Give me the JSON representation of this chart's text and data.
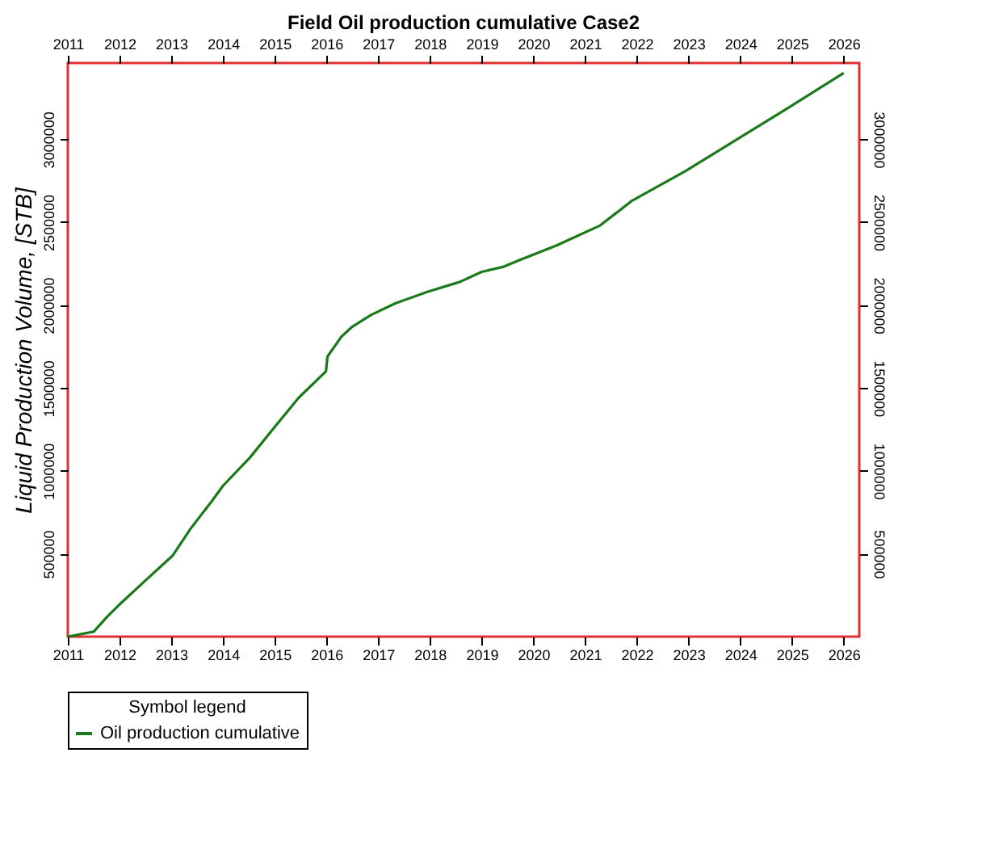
{
  "chart_data": {
    "type": "line",
    "title": "Field Oil production cumulative Case2",
    "ylabel": "Liquid Production Volume, [STB]",
    "legend_title": "Symbol legend",
    "series": [
      {
        "name": "Oil production cumulative",
        "color": "#1a7a1a",
        "x": [
          2011.0,
          2011.5,
          2011.76,
          2012.02,
          2012.54,
          2013.03,
          2013.37,
          2013.79,
          2014.0,
          2014.52,
          2015.04,
          2015.46,
          2015.99,
          2016.02,
          2016.29,
          2016.5,
          2016.86,
          2017.33,
          2017.95,
          2018.58,
          2019.0,
          2019.41,
          2019.72,
          2020.45,
          2021.29,
          2021.91,
          2022.95,
          2023.99,
          2024.93,
          2026.0
        ],
        "values": [
          0,
          30000,
          120000,
          200000,
          350000,
          490000,
          650000,
          820000,
          910000,
          1080000,
          1280000,
          1440000,
          1600000,
          1690000,
          1810000,
          1870000,
          1940000,
          2010000,
          2080000,
          2140000,
          2200000,
          2230000,
          2270000,
          2360000,
          2480000,
          2630000,
          2810000,
          3010000,
          3190000,
          3400000
        ]
      }
    ],
    "xlim": [
      2011,
      2026.3
    ],
    "xticks": [
      2011,
      2012,
      2013,
      2014,
      2015,
      2016,
      2017,
      2018,
      2019,
      2020,
      2021,
      2022,
      2023,
      2024,
      2025,
      2026
    ],
    "x2lim": [
      2011,
      2026.3
    ],
    "x2ticks": [
      2011,
      2012,
      2013,
      2014,
      2015,
      2016,
      2017,
      2018,
      2019,
      2020,
      2021,
      2022,
      2023,
      2024,
      2025,
      2026
    ],
    "ylim": [
      0,
      3460000
    ],
    "yticks": [
      500000,
      1000000,
      1500000,
      2000000,
      2500000,
      3000000
    ],
    "y2lim": [
      0,
      3460000
    ],
    "y2ticks": [
      500000,
      1000000,
      1500000,
      2000000,
      2500000,
      3000000
    ],
    "grid": false,
    "legend": "bottom",
    "marker": "none",
    "line_style": "solid"
  }
}
